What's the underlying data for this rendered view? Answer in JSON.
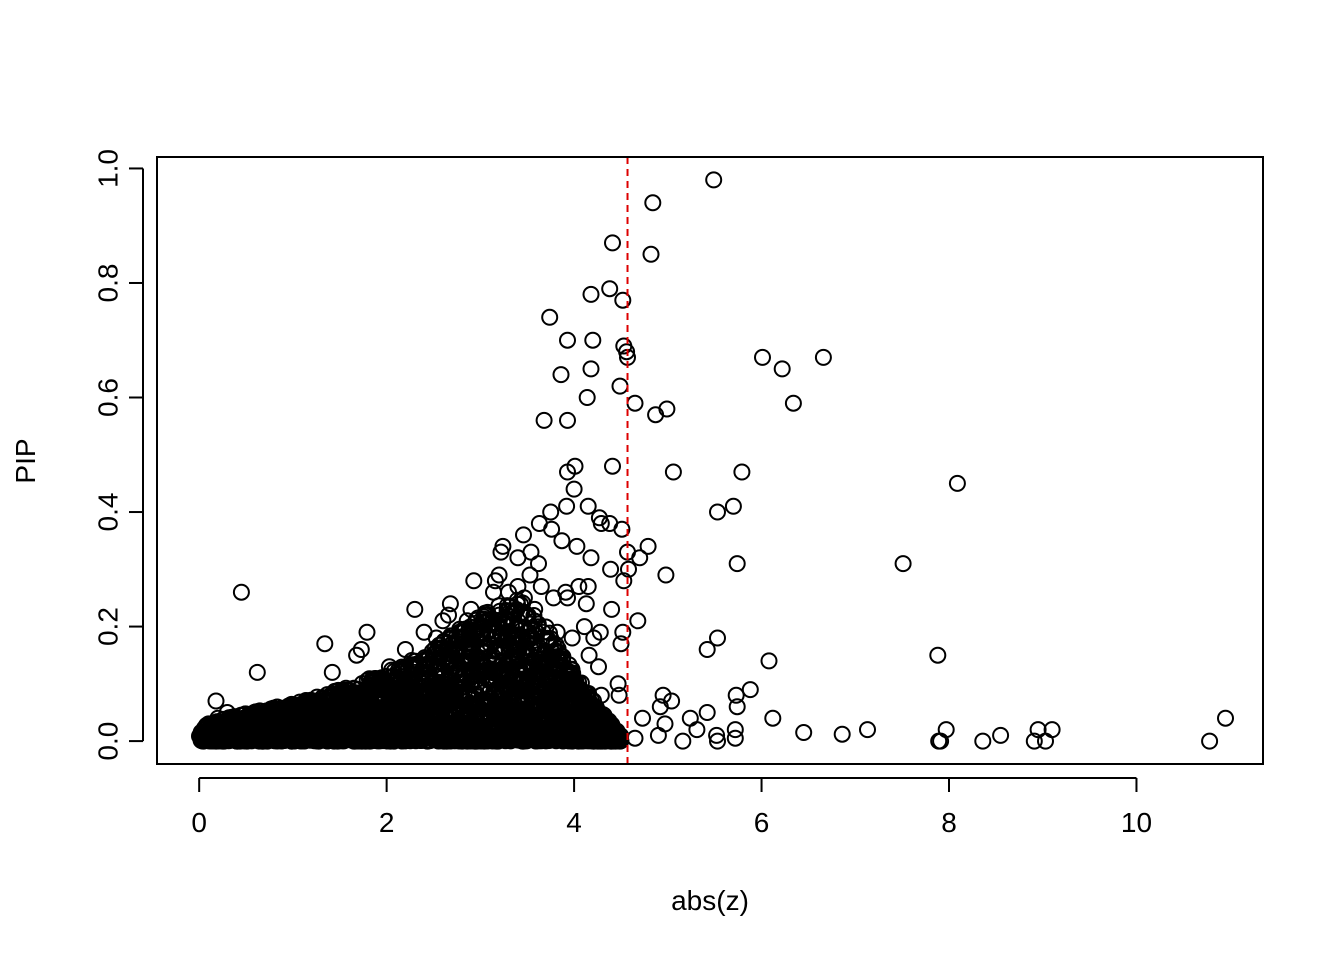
{
  "chart_data": {
    "type": "scatter",
    "title": "",
    "xlabel": "abs(z)",
    "ylabel": "PIP",
    "xlim": [
      -0.45,
      11.35
    ],
    "ylim": [
      -0.04,
      1.02
    ],
    "x_ticks": [
      0,
      2,
      4,
      6,
      8,
      10
    ],
    "x_tick_labels": [
      "0",
      "2",
      "4",
      "6",
      "8",
      "10"
    ],
    "y_ticks": [
      0.0,
      0.2,
      0.4,
      0.6,
      0.8,
      1.0
    ],
    "y_tick_labels": [
      "0.0",
      "0.2",
      "0.4",
      "0.6",
      "0.8",
      "1.0"
    ],
    "grid": false,
    "legend": "none",
    "point_color": "#000000",
    "threshold": {
      "orientation": "vertical",
      "x": 4.57,
      "style": "dashed",
      "color": "#dd0000"
    },
    "series": [
      {
        "points": [
          [
            5.49,
            0.98
          ],
          [
            4.84,
            0.94
          ],
          [
            4.41,
            0.87
          ],
          [
            4.82,
            0.85
          ],
          [
            4.38,
            0.79
          ],
          [
            4.18,
            0.78
          ],
          [
            4.52,
            0.77
          ],
          [
            3.74,
            0.74
          ],
          [
            3.93,
            0.7
          ],
          [
            4.2,
            0.7
          ],
          [
            4.53,
            0.69
          ],
          [
            4.56,
            0.68
          ],
          [
            4.57,
            0.67
          ],
          [
            6.01,
            0.67
          ],
          [
            6.66,
            0.67
          ],
          [
            4.18,
            0.65
          ],
          [
            6.22,
            0.65
          ],
          [
            3.86,
            0.64
          ],
          [
            4.49,
            0.62
          ],
          [
            4.14,
            0.6
          ],
          [
            4.65,
            0.59
          ],
          [
            6.34,
            0.59
          ],
          [
            4.99,
            0.58
          ],
          [
            4.87,
            0.57
          ],
          [
            3.68,
            0.56
          ],
          [
            3.93,
            0.56
          ],
          [
            4.01,
            0.48
          ],
          [
            4.41,
            0.48
          ],
          [
            5.06,
            0.47
          ],
          [
            3.93,
            0.47
          ],
          [
            5.79,
            0.47
          ],
          [
            8.09,
            0.45
          ],
          [
            4.0,
            0.44
          ],
          [
            3.92,
            0.41
          ],
          [
            4.15,
            0.41
          ],
          [
            5.7,
            0.41
          ],
          [
            5.53,
            0.4
          ],
          [
            3.75,
            0.4
          ],
          [
            4.27,
            0.39
          ],
          [
            4.29,
            0.38
          ],
          [
            3.63,
            0.38
          ],
          [
            4.38,
            0.38
          ],
          [
            3.76,
            0.37
          ],
          [
            4.51,
            0.37
          ],
          [
            3.46,
            0.36
          ],
          [
            3.87,
            0.35
          ],
          [
            3.24,
            0.34
          ],
          [
            4.03,
            0.34
          ],
          [
            4.79,
            0.34
          ],
          [
            3.54,
            0.33
          ],
          [
            4.57,
            0.33
          ],
          [
            3.22,
            0.33
          ],
          [
            4.7,
            0.32
          ],
          [
            4.18,
            0.32
          ],
          [
            3.4,
            0.32
          ],
          [
            3.62,
            0.31
          ],
          [
            5.74,
            0.31
          ],
          [
            7.51,
            0.31
          ],
          [
            4.39,
            0.3
          ],
          [
            4.58,
            0.3
          ],
          [
            3.2,
            0.29
          ],
          [
            3.53,
            0.29
          ],
          [
            4.98,
            0.29
          ],
          [
            2.93,
            0.28
          ],
          [
            3.16,
            0.28
          ],
          [
            4.53,
            0.28
          ],
          [
            3.65,
            0.27
          ],
          [
            4.05,
            0.27
          ],
          [
            4.15,
            0.27
          ],
          [
            3.4,
            0.27
          ],
          [
            3.3,
            0.26
          ],
          [
            3.91,
            0.26
          ],
          [
            3.14,
            0.26
          ],
          [
            3.47,
            0.25
          ],
          [
            3.78,
            0.25
          ],
          [
            0.45,
            0.26
          ],
          [
            2.68,
            0.24
          ],
          [
            3.93,
            0.25
          ],
          [
            2.9,
            0.23
          ],
          [
            3.58,
            0.23
          ],
          [
            4.13,
            0.24
          ],
          [
            2.3,
            0.23
          ],
          [
            4.4,
            0.23
          ],
          [
            2.66,
            0.22
          ],
          [
            3.05,
            0.22
          ],
          [
            4.68,
            0.21
          ],
          [
            2.86,
            0.21
          ],
          [
            3.29,
            0.2
          ],
          [
            3.67,
            0.19
          ],
          [
            4.11,
            0.2
          ],
          [
            3.82,
            0.19
          ],
          [
            1.79,
            0.19
          ],
          [
            4.28,
            0.19
          ],
          [
            4.52,
            0.19
          ],
          [
            3.98,
            0.18
          ],
          [
            2.53,
            0.18
          ],
          [
            5.53,
            0.18
          ],
          [
            4.21,
            0.18
          ],
          [
            1.34,
            0.17
          ],
          [
            4.5,
            0.17
          ],
          [
            5.42,
            0.16
          ],
          [
            1.73,
            0.16
          ],
          [
            3.36,
            0.16
          ],
          [
            1.68,
            0.15
          ],
          [
            7.88,
            0.15
          ],
          [
            4.16,
            0.15
          ],
          [
            6.08,
            0.14
          ],
          [
            3.83,
            0.14
          ],
          [
            3.54,
            0.13
          ],
          [
            2.03,
            0.13
          ],
          [
            4.26,
            0.13
          ],
          [
            0.62,
            0.12
          ],
          [
            1.42,
            0.12
          ],
          [
            3.78,
            0.12
          ],
          [
            2.66,
            0.11
          ],
          [
            3.1,
            0.11
          ],
          [
            3.98,
            0.1
          ],
          [
            4.47,
            0.1
          ],
          [
            5.88,
            0.09
          ],
          [
            3.5,
            0.09
          ],
          [
            4.48,
            0.08
          ],
          [
            4.29,
            0.08
          ],
          [
            5.73,
            0.08
          ],
          [
            4.95,
            0.08
          ],
          [
            5.04,
            0.07
          ],
          [
            0.18,
            0.07
          ],
          [
            4.92,
            0.06
          ],
          [
            5.74,
            0.06
          ],
          [
            3.92,
            0.05
          ],
          [
            5.42,
            0.05
          ],
          [
            3.44,
            0.04
          ],
          [
            4.73,
            0.04
          ],
          [
            5.24,
            0.04
          ],
          [
            6.12,
            0.04
          ],
          [
            4.97,
            0.03
          ],
          [
            4.34,
            0.03
          ],
          [
            5.31,
            0.02
          ],
          [
            5.72,
            0.02
          ],
          [
            7.13,
            0.02
          ],
          [
            7.97,
            0.02
          ],
          [
            8.95,
            0.02
          ],
          [
            9.1,
            0.02
          ],
          [
            6.45,
            0.015
          ],
          [
            6.86,
            0.012
          ],
          [
            8.55,
            0.01
          ],
          [
            5.52,
            0.01
          ],
          [
            4.9,
            0.01
          ],
          [
            4.65,
            0.005
          ],
          [
            5.72,
            0.005
          ],
          [
            10.95,
            0.04
          ],
          [
            10.78,
            0.0
          ],
          [
            9.03,
            0.0
          ],
          [
            8.91,
            0.0
          ],
          [
            8.36,
            0.0
          ],
          [
            7.89,
            0.0
          ],
          [
            7.91,
            0.0
          ],
          [
            5.16,
            0.0
          ],
          [
            5.53,
            0.0
          ],
          [
            4.49,
            0.0
          ],
          [
            4.28,
            0.0
          ],
          [
            3.98,
            0.0
          ],
          [
            0.05,
            0.02
          ],
          [
            0.1,
            0.03
          ],
          [
            0.15,
            0.01
          ],
          [
            0.2,
            0.04
          ],
          [
            0.25,
            0.02
          ],
          [
            0.3,
            0.05
          ],
          [
            0.35,
            0.01
          ],
          [
            0.4,
            0.03
          ],
          [
            0.48,
            0.04
          ],
          [
            0.55,
            0.02
          ],
          [
            0.62,
            0.05
          ],
          [
            0.7,
            0.01
          ],
          [
            0.8,
            0.04
          ],
          [
            0.9,
            0.03
          ],
          [
            1.0,
            0.06
          ],
          [
            1.1,
            0.02
          ],
          [
            1.2,
            0.05
          ],
          [
            1.3,
            0.07
          ],
          [
            1.4,
            0.03
          ],
          [
            1.5,
            0.08
          ],
          [
            1.6,
            0.04
          ],
          [
            1.7,
            0.09
          ],
          [
            1.8,
            0.05
          ],
          [
            1.9,
            0.1
          ],
          [
            2.0,
            0.06
          ],
          [
            2.1,
            0.11
          ],
          [
            2.2,
            0.07
          ],
          [
            2.3,
            0.12
          ],
          [
            2.4,
            0.08
          ],
          [
            2.5,
            0.14
          ],
          [
            2.6,
            0.09
          ],
          [
            2.7,
            0.15
          ],
          [
            2.8,
            0.1
          ],
          [
            2.9,
            0.16
          ],
          [
            3.0,
            0.12
          ],
          [
            3.1,
            0.17
          ],
          [
            3.2,
            0.13
          ],
          [
            3.3,
            0.18
          ],
          [
            3.4,
            0.14
          ],
          [
            3.5,
            0.15
          ],
          [
            3.6,
            0.1
          ],
          [
            3.7,
            0.08
          ],
          [
            3.8,
            0.05
          ],
          [
            3.9,
            0.04
          ],
          [
            4.0,
            0.06
          ],
          [
            4.1,
            0.03
          ],
          [
            4.2,
            0.02
          ],
          [
            4.3,
            0.01
          ],
          [
            2.2,
            0.16
          ],
          [
            2.4,
            0.19
          ],
          [
            2.6,
            0.21
          ],
          [
            2.8,
            0.18
          ],
          [
            3.0,
            0.2
          ],
          [
            3.2,
            0.22
          ],
          [
            3.4,
            0.21
          ],
          [
            3.6,
            0.19
          ]
        ]
      }
    ],
    "dense_region": {
      "description_free_params": true,
      "x_max_at_pip": [
        [
          0.1,
          0.03
        ],
        [
          0.5,
          0.05
        ],
        [
          1.0,
          0.065
        ],
        [
          1.5,
          0.09
        ],
        [
          2.0,
          0.12
        ],
        [
          2.5,
          0.16
        ],
        [
          2.8,
          0.2
        ],
        [
          3.1,
          0.23
        ],
        [
          3.4,
          0.25
        ],
        [
          3.7,
          0.2
        ],
        [
          4.0,
          0.12
        ],
        [
          4.3,
          0.05
        ],
        [
          4.5,
          0.01
        ]
      ],
      "points_per_unit": 700
    }
  }
}
